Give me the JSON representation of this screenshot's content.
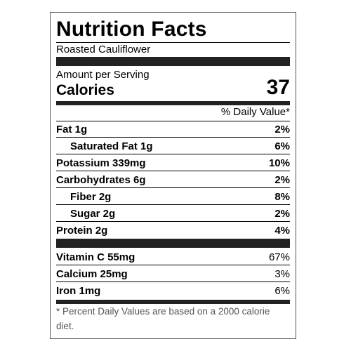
{
  "label": {
    "title": "Nutrition Facts",
    "product_name": "Roasted Cauliflower",
    "amount_per_serving": "Amount per Serving",
    "calories_label": "Calories",
    "calories_value": "37",
    "daily_value_header": "% Daily Value*",
    "nutrients": [
      {
        "name": "Fat 1g",
        "percent": "2%"
      },
      {
        "name": "Saturated Fat 1g",
        "percent": "6%"
      },
      {
        "name": "Potassium 339mg",
        "percent": "10%"
      },
      {
        "name": "Carbohydrates 6g",
        "percent": "2%"
      },
      {
        "name": "Fiber 2g",
        "percent": "8%"
      },
      {
        "name": "Sugar 2g",
        "percent": "2%"
      },
      {
        "name": "Protein 2g",
        "percent": "4%"
      }
    ],
    "vitamins": [
      {
        "name": "Vitamin C 55mg",
        "percent": "67%"
      },
      {
        "name": "Calcium 25mg",
        "percent": "3%"
      },
      {
        "name": "Iron 1mg",
        "percent": "6%"
      }
    ],
    "footnote": "* Percent Daily Values are based on a 2000 calorie diet."
  }
}
